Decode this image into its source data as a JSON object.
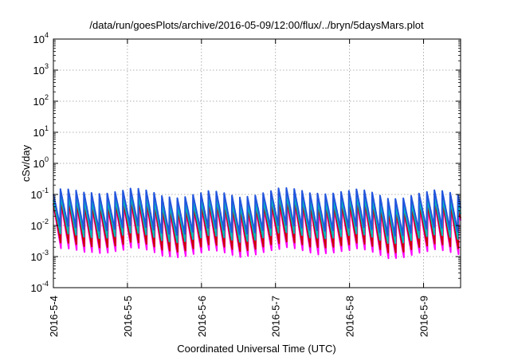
{
  "chart_data": {
    "type": "line",
    "title": "/data/run/goesPlots/archive/2016-05-09/12:00/flux/../bryn/5daysMars.plot",
    "xlabel": "Coordinated Universal Time (UTC)",
    "ylabel": "cSv/day",
    "yscale": "log",
    "ylim": [
      0.0001,
      10000
    ],
    "xlim": [
      "2016-05-04 00:00",
      "2016-05-09 12:00"
    ],
    "grid": true,
    "x_ticks": [
      "2016-5-4",
      "2016-5-5",
      "2016-5-6",
      "2016-5-7",
      "2016-5-8",
      "2016-5-9"
    ],
    "y_ticks": [
      {
        "base": "10",
        "exp": "-4"
      },
      {
        "base": "10",
        "exp": "-3"
      },
      {
        "base": "10",
        "exp": "-2"
      },
      {
        "base": "10",
        "exp": "-1"
      },
      {
        "base": "10",
        "exp": "0"
      },
      {
        "base": "10",
        "exp": "1"
      },
      {
        "base": "10",
        "exp": "2"
      },
      {
        "base": "10",
        "exp": "3"
      },
      {
        "base": "10",
        "exp": "4"
      }
    ],
    "series": [
      {
        "color": "#ff00ff",
        "peak": 0.04,
        "trough": 0.0013
      },
      {
        "color": "#cc0000",
        "peak": 0.05,
        "trough": 0.002
      },
      {
        "color": "#00bbbb",
        "peak": 0.07,
        "trough": 0.004
      },
      {
        "color": "#2255dd",
        "peak": 0.12,
        "trough": 0.007
      }
    ],
    "cycles_per_day": 9.5
  }
}
